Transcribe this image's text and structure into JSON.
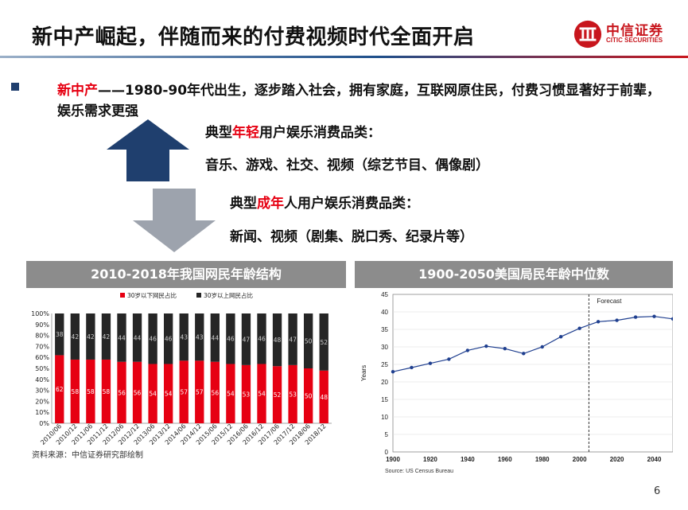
{
  "header": {
    "title": "新中产崛起，伴随而来的付费视频时代全面开启"
  },
  "logo": {
    "cn": "中信证券",
    "en": "CITIC SECURITIES",
    "color": "#c8161d"
  },
  "bullet": {
    "highlight": "新中产",
    "rest": "——1980-90年代出生，逐步踏入社会，拥有家庭，互联网原住民，付费习惯显著好于前辈，娱乐需求更强"
  },
  "young": {
    "prefix": "典型",
    "highlight": "年轻",
    "suffix": "用户娱乐消费品类：",
    "items": "音乐、游戏、社交、视频（综艺节目、偶像剧）"
  },
  "adult": {
    "prefix": "典型",
    "highlight": "成年",
    "suffix": "人用户娱乐消费品类：",
    "items": "新闻、视频（剧集、脱口秀、纪录片等）"
  },
  "colors": {
    "up_arrow": "#1f3f6e",
    "down_arrow": "#9da3ad",
    "red": "#e60012",
    "bar_dark": "#262626"
  },
  "chart_left_header": "2010-2018年我国网民年龄结构",
  "chart_right_header": "1900-2050美国局民年龄中位数",
  "source": "资料来源：中信证券研究部绘制",
  "page": "6",
  "chart_data": [
    {
      "type": "bar",
      "stacked": true,
      "categories": [
        "2010/06",
        "2010/12",
        "2011/06",
        "2011/12",
        "2012/06",
        "2012/12",
        "2013/06",
        "2013/12",
        "2014/06",
        "2014/12",
        "2015/06",
        "2015/12",
        "2016/06",
        "2016/12",
        "2017/06",
        "2017/12",
        "2018/06",
        "2018/12"
      ],
      "series": [
        {
          "name": "30岁以下网民占比",
          "color": "#e60012",
          "values": [
            62,
            58,
            58,
            58,
            56,
            56,
            54,
            54,
            57,
            57,
            56,
            54,
            53,
            54,
            52,
            53,
            50,
            48
          ]
        },
        {
          "name": "30岁以上网民占比",
          "color": "#262626",
          "values": [
            38,
            42,
            42,
            42,
            44,
            44,
            46,
            46,
            43,
            43,
            44,
            46,
            47,
            46,
            48,
            47,
            50,
            52
          ]
        }
      ],
      "ylim": [
        0,
        100
      ],
      "yticks": [
        "0%",
        "10%",
        "20%",
        "30%",
        "40%",
        "50%",
        "60%",
        "70%",
        "80%",
        "90%",
        "100%"
      ],
      "legend": "top"
    },
    {
      "type": "line",
      "x": [
        1900,
        1910,
        1920,
        1930,
        1940,
        1950,
        1960,
        1970,
        1980,
        1990,
        2000,
        2010,
        2020,
        2030,
        2040,
        2050
      ],
      "y": [
        22.9,
        24.1,
        25.3,
        26.5,
        29.0,
        30.2,
        29.5,
        28.1,
        30.0,
        32.9,
        35.3,
        37.2,
        37.6,
        38.5,
        38.7,
        38.0
      ],
      "forecast_start": 2005,
      "forecast_label": "Forecast",
      "ylabel": "Years",
      "xlim": [
        1900,
        2050
      ],
      "ylim": [
        0,
        45
      ],
      "xticks": [
        1900,
        1920,
        1940,
        1960,
        1980,
        2000,
        2020,
        2040
      ],
      "yticks": [
        0,
        5,
        10,
        15,
        20,
        25,
        30,
        35,
        40,
        45
      ],
      "source": "Source: US Census Bureau",
      "color": "#1f3f8f"
    }
  ]
}
